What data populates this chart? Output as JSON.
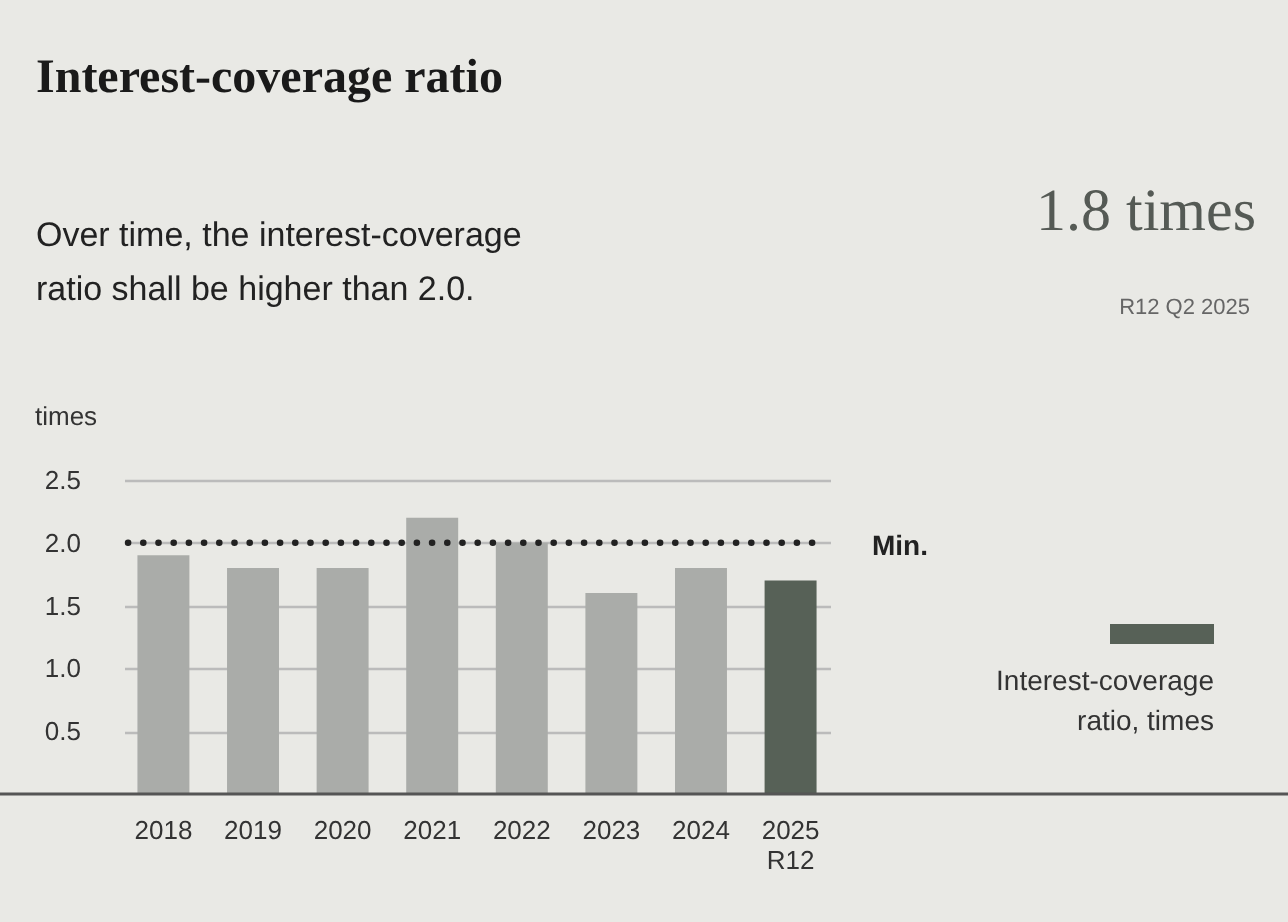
{
  "chart_data": {
    "type": "bar",
    "title": "Interest-coverage ratio",
    "subtitle": "Over time, the interest-coverage ratio shall be higher than 2.0.",
    "annotations": [
      "1.8 times",
      "R12 Q2 2025"
    ],
    "ylabel": "times",
    "categories": [
      "2018",
      "2019",
      "2020",
      "2021",
      "2022",
      "2023",
      "2024",
      "2025\nR12"
    ],
    "series": [
      {
        "color": "#aaaca9",
        "values": [
          1.9,
          1.8,
          1.8,
          2.2,
          2.0,
          1.6,
          1.8,
          null
        ]
      },
      {
        "name": "Interest-coverage ratio, times",
        "color": "#576157",
        "values": [
          null,
          null,
          null,
          null,
          null,
          null,
          null,
          1.7
        ]
      }
    ],
    "ylim": [
      0,
      2.5
    ],
    "yticks": [
      0.5,
      {
        "value": 1,
        "label": "1.0"
      },
      1.5,
      {
        "value": 2,
        "label": "2.0"
      },
      2.5
    ],
    "ref_lines": [
      {
        "axis": "y",
        "value": 2.0,
        "label": "Min.",
        "color": "#222222",
        "line_style": "dotted"
      }
    ],
    "grid": "y",
    "legend": "right"
  }
}
